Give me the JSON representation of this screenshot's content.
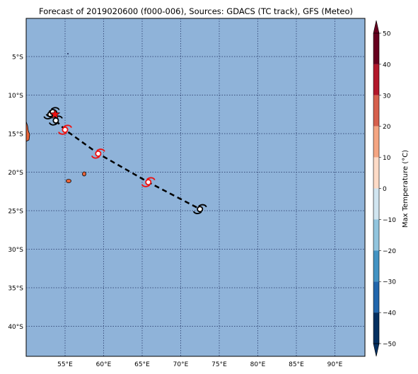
{
  "title": "Forecast of 2019020600 (f000-006), Sources: GDACS (TC track), GFS (Meteo)",
  "map": {
    "ocean_color": "#8fb3d9",
    "land_color": "#e8643a",
    "grid_color": "#1f2f5f",
    "lat_ticks": [
      {
        "value": -5,
        "label": "5°S"
      },
      {
        "value": -10,
        "label": "10°S"
      },
      {
        "value": -15,
        "label": "15°S"
      },
      {
        "value": -20,
        "label": "20°S"
      },
      {
        "value": -25,
        "label": "25°S"
      },
      {
        "value": -30,
        "label": "30°S"
      },
      {
        "value": -35,
        "label": "35°S"
      },
      {
        "value": -40,
        "label": "40°S"
      }
    ],
    "lon_ticks": [
      {
        "value": 55,
        "label": "55°E"
      },
      {
        "value": 60,
        "label": "60°E"
      },
      {
        "value": 65,
        "label": "65°E"
      },
      {
        "value": 70,
        "label": "70°E"
      },
      {
        "value": 75,
        "label": "75°E"
      },
      {
        "value": 80,
        "label": "80°E"
      },
      {
        "value": 85,
        "label": "85°E"
      },
      {
        "value": 90,
        "label": "90°E"
      }
    ],
    "tc_track": [
      {
        "lon": 53.8,
        "lat": -13.3,
        "symbol": "hurricane",
        "color": "#000000"
      },
      {
        "lon": 55.0,
        "lat": -14.5,
        "symbol": "hurricane",
        "color": "#ee1111"
      },
      {
        "lon": 59.3,
        "lat": -17.6,
        "symbol": "hurricane",
        "color": "#ee1111"
      },
      {
        "lon": 65.8,
        "lat": -21.3,
        "symbol": "hurricane",
        "color": "#ee1111"
      },
      {
        "lon": 72.5,
        "lat": -24.8,
        "symbol": "hurricane",
        "color": "#000000"
      }
    ],
    "past_positions": [
      {
        "lon": 53.1,
        "lat": -12.5
      },
      {
        "lon": 53.4,
        "lat": -12.2
      }
    ],
    "current_position": {
      "lon": 53.7,
      "lat": -12.5,
      "marker": "star",
      "color": "#ee1111"
    }
  },
  "colorbar": {
    "label": "Max Temperature (°C)",
    "ticks": [
      "50",
      "40",
      "30",
      "20",
      "10",
      "0",
      "−10",
      "−20",
      "−30",
      "−40",
      "−50"
    ],
    "colors": [
      "#67001f",
      "#b2182b",
      "#d6604d",
      "#f4a582",
      "#fddbc7",
      "#f7f7f7",
      "#d1e5f0",
      "#92c5de",
      "#4393c3",
      "#2166ac",
      "#053061"
    ]
  }
}
